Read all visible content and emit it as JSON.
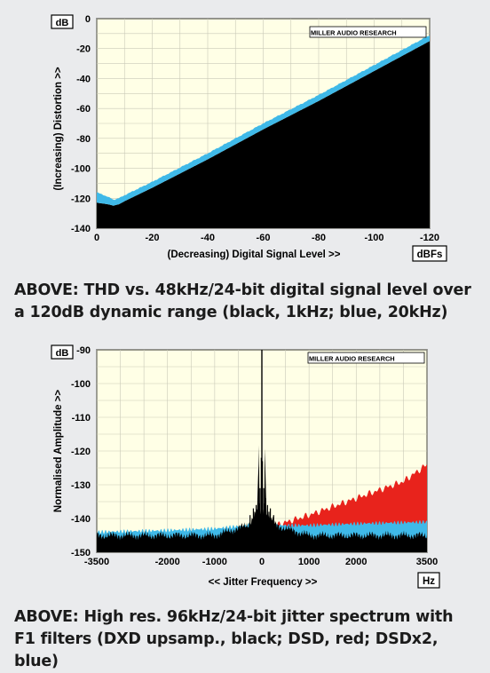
{
  "colors": {
    "page_bg": "#eaebed",
    "plot_bg": "#ffffe6",
    "grid": "#c9c9b8",
    "black": "#000000",
    "blue": "#3fb9e8",
    "red": "#e8231c"
  },
  "chart_data": [
    {
      "type": "area",
      "unit_box_y": "dB",
      "unit_box_x": "dBFs",
      "logo": "MILLER AUDIO RESEARCH",
      "xlabel": "(Decreasing) Digital Signal Level >>",
      "ylabel": "(Increasing) Distortion >>",
      "xlim": [
        0,
        -120
      ],
      "ylim": [
        -140,
        0
      ],
      "x_ticks": [
        "0",
        "-20",
        "-40",
        "-60",
        "-80",
        "-100",
        "-120"
      ],
      "y_ticks": [
        "0",
        "-20",
        "-40",
        "-60",
        "-80",
        "-100",
        "-120",
        "-140"
      ],
      "grid": true,
      "series": [
        {
          "name": "1kHz",
          "color": "black",
          "x": [
            0,
            -4,
            -6,
            -8,
            -10,
            -20,
            -40,
            -60,
            -80,
            -100,
            -110,
            -120
          ],
          "y": [
            -123,
            -124,
            -125,
            -124,
            -122,
            -113,
            -94,
            -74,
            -55,
            -35,
            -25,
            -15
          ]
        },
        {
          "name": "20kHz",
          "color": "blue",
          "x": [
            0,
            -4,
            -6,
            -8,
            -10,
            -20,
            -40,
            -60,
            -80,
            -100,
            -110,
            -120
          ],
          "y": [
            -116,
            -119,
            -121,
            -120,
            -118,
            -109,
            -90,
            -70,
            -51,
            -31,
            -21,
            -11
          ]
        }
      ]
    },
    {
      "type": "area",
      "unit_box_y": "dB",
      "unit_box_x": "Hz",
      "logo": "MILLER AUDIO RESEARCH",
      "xlabel": "<< Jitter Frequency >>",
      "ylabel": "Normalised Amplitude >>",
      "xlim": [
        -3500,
        3500
      ],
      "ylim": [
        -150,
        -90
      ],
      "x_ticks": [
        "-3500",
        "-2000",
        "-1000",
        "0",
        "1000",
        "2000",
        "3500"
      ],
      "y_ticks": [
        "-90",
        "-100",
        "-110",
        "-120",
        "-130",
        "-140",
        "-150"
      ],
      "grid": true,
      "series": [
        {
          "name": "DSD",
          "color": "red",
          "x": [
            300,
            1000,
            2000,
            3000,
            3500
          ],
          "y": [
            -142,
            -139,
            -134,
            -129,
            -124
          ]
        },
        {
          "name": "DSDx2",
          "color": "blue",
          "x": [
            -3500,
            -2000,
            -1000,
            -300,
            0,
            300,
            1000,
            2000,
            3500
          ],
          "y": [
            -144,
            -143.5,
            -143,
            -142,
            -141,
            -142,
            -142,
            -141.5,
            -141
          ]
        },
        {
          "name": "DXD upsamp.",
          "color": "black",
          "x": [
            -3500,
            -1000,
            -300,
            -100,
            0,
            100,
            300,
            1000,
            3500
          ],
          "y": [
            -145,
            -145,
            -142,
            -138,
            -90,
            -138,
            -142,
            -145,
            -145
          ]
        }
      ]
    }
  ],
  "captions": {
    "c1_line1": "ABOVE: THD vs. 48kHz/24-bit digital signal level over",
    "c1_line2": "a 120dB dynamic range (black, 1kHz; blue, 20kHz)",
    "c2_line1": "ABOVE: High res. 96kHz/24-bit jitter spectrum with",
    "c2_line2": "F1 filters (DXD upsamp., black; DSD, red; DSDx2, blue)"
  }
}
